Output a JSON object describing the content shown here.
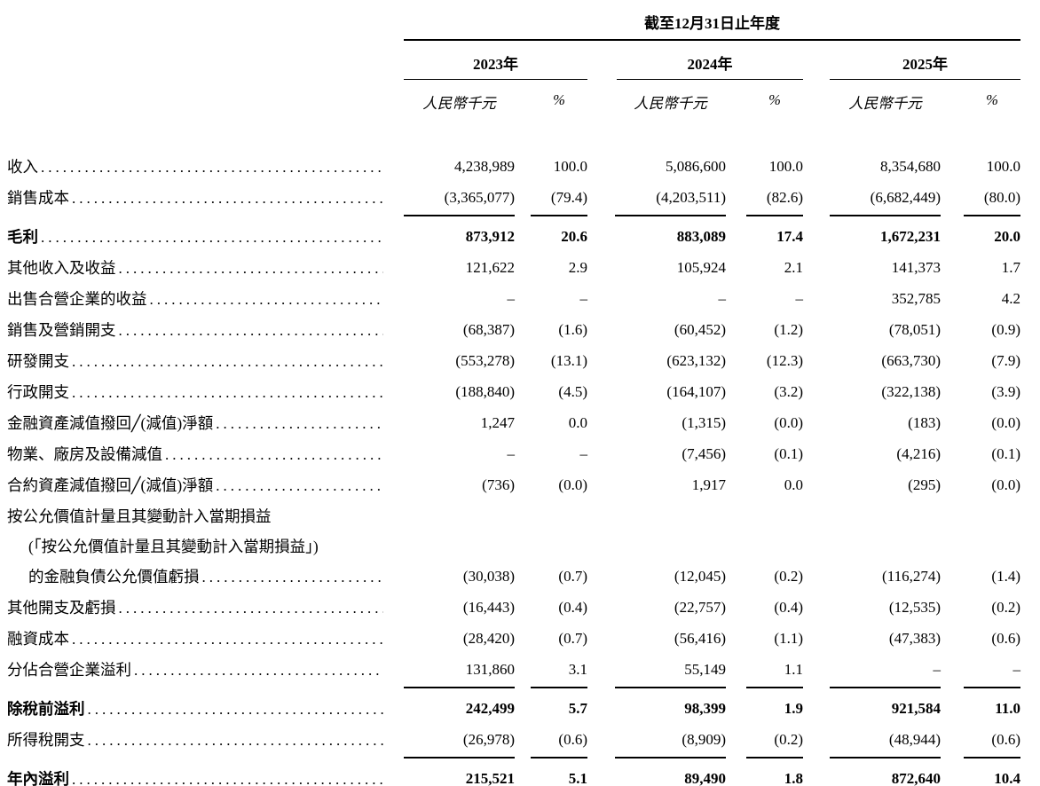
{
  "page": {
    "background_color": "#ffffff",
    "text_color": "#000000"
  },
  "table": {
    "period_header": "截至12月31日止年度",
    "years": [
      "2023年",
      "2024年",
      "2025年"
    ],
    "col_headers": {
      "currency": "人民幣千元",
      "percent": "%"
    },
    "rows": [
      {
        "label": "收入",
        "dots": true,
        "values": [
          "4,238,989",
          "100.0",
          "5,086,600",
          "100.0",
          "8,354,680",
          "100.0"
        ]
      },
      {
        "label": "銷售成本",
        "dots": true,
        "values": [
          "(3,365,077)",
          "(79.4)",
          "(4,203,511)",
          "(82.6)",
          "(6,682,449)",
          "(80.0)"
        ]
      },
      {
        "label": "毛利",
        "dots": true,
        "bold": true,
        "rule_above": true,
        "values": [
          "873,912",
          "20.6",
          "883,089",
          "17.4",
          "1,672,231",
          "20.0"
        ]
      },
      {
        "label": "其他收入及收益",
        "dots": true,
        "values": [
          "121,622",
          "2.9",
          "105,924",
          "2.1",
          "141,373",
          "1.7"
        ]
      },
      {
        "label": "出售合營企業的收益",
        "dots": true,
        "values": [
          "–",
          "–",
          "–",
          "–",
          "352,785",
          "4.2"
        ]
      },
      {
        "label": "銷售及營銷開支",
        "dots": true,
        "values": [
          "(68,387)",
          "(1.6)",
          "(60,452)",
          "(1.2)",
          "(78,051)",
          "(0.9)"
        ]
      },
      {
        "label": "研發開支",
        "dots": true,
        "values": [
          "(553,278)",
          "(13.1)",
          "(623,132)",
          "(12.3)",
          "(663,730)",
          "(7.9)"
        ]
      },
      {
        "label": "行政開支",
        "dots": true,
        "values": [
          "(188,840)",
          "(4.5)",
          "(164,107)",
          "(3.2)",
          "(322,138)",
          "(3.9)"
        ]
      },
      {
        "label": "金融資產減值撥回╱(減值)淨額",
        "dots": true,
        "values": [
          "1,247",
          "0.0",
          "(1,315)",
          "(0.0)",
          "(183)",
          "(0.0)"
        ]
      },
      {
        "label": "物業、廠房及設備減值",
        "dots": true,
        "values": [
          "–",
          "–",
          "(7,456)",
          "(0.1)",
          "(4,216)",
          "(0.1)"
        ]
      },
      {
        "label": "合約資產減值撥回╱(減值)淨額",
        "dots": true,
        "values": [
          "(736)",
          "(0.0)",
          "1,917",
          "0.0",
          "(295)",
          "(0.0)"
        ]
      },
      {
        "label": "按公允價值計量且其變動計入當期損益",
        "dots": false,
        "values": null
      },
      {
        "label": "(「按公允價值計量且其變動計入當期損益」)",
        "indent": 1,
        "dots": false,
        "values": null
      },
      {
        "label": "的金融負債公允價值虧損",
        "indent": 1,
        "dots": true,
        "values": [
          "(30,038)",
          "(0.7)",
          "(12,045)",
          "(0.2)",
          "(116,274)",
          "(1.4)"
        ]
      },
      {
        "label": "其他開支及虧損",
        "dots": true,
        "values": [
          "(16,443)",
          "(0.4)",
          "(22,757)",
          "(0.4)",
          "(12,535)",
          "(0.2)"
        ]
      },
      {
        "label": "融資成本",
        "dots": true,
        "values": [
          "(28,420)",
          "(0.7)",
          "(56,416)",
          "(1.1)",
          "(47,383)",
          "(0.6)"
        ]
      },
      {
        "label": "分佔合營企業溢利",
        "dots": true,
        "values": [
          "131,860",
          "3.1",
          "55,149",
          "1.1",
          "–",
          "–"
        ]
      },
      {
        "label": "除稅前溢利",
        "dots": true,
        "bold": true,
        "rule_above": true,
        "values": [
          "242,499",
          "5.7",
          "98,399",
          "1.9",
          "921,584",
          "11.0"
        ]
      },
      {
        "label": "所得稅開支",
        "dots": true,
        "values": [
          "(26,978)",
          "(0.6)",
          "(8,909)",
          "(0.2)",
          "(48,944)",
          "(0.6)"
        ]
      },
      {
        "label": "年內溢利",
        "dots": true,
        "bold": true,
        "rule_above": true,
        "double_below": true,
        "values": [
          "215,521",
          "5.1",
          "89,490",
          "1.8",
          "872,640",
          "10.4"
        ]
      }
    ]
  }
}
